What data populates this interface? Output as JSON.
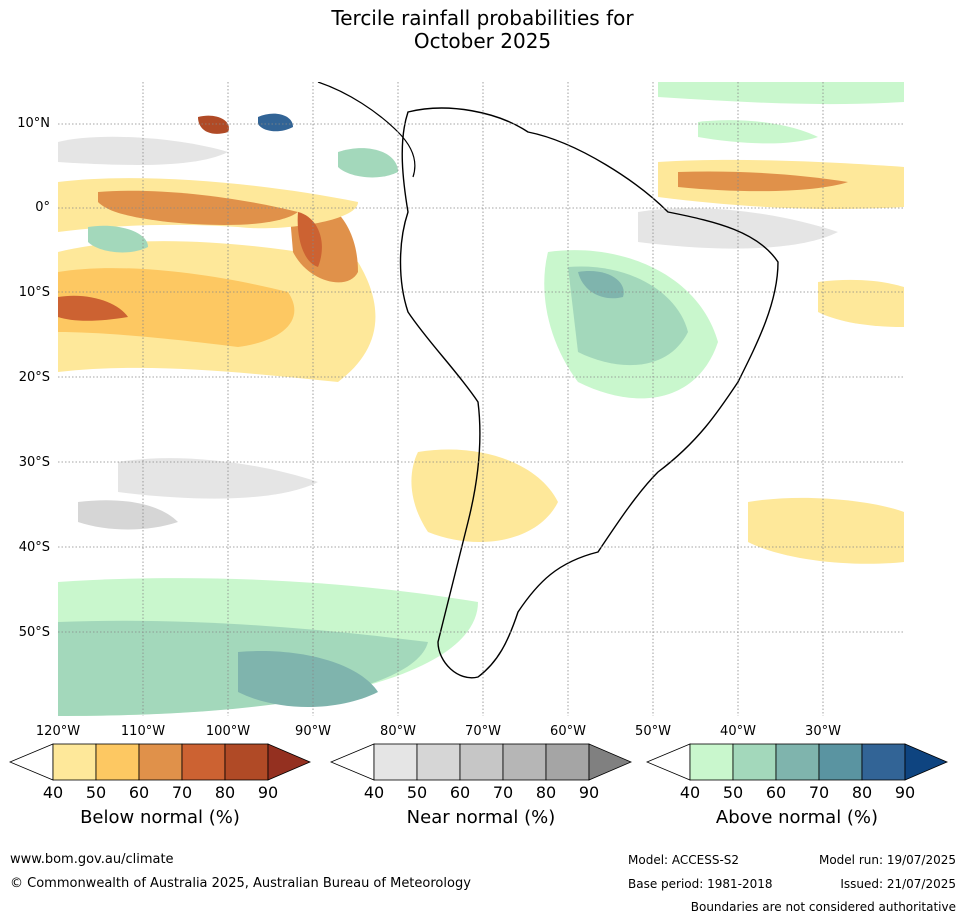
{
  "title": {
    "line1": "Tercile rainfall probabilities for",
    "line2": "October 2025"
  },
  "lat_labels": [
    "10°N",
    "0°",
    "10°S",
    "20°S",
    "30°S",
    "40°S",
    "50°S"
  ],
  "lon_labels": [
    "120°W",
    "110°W",
    "100°W",
    "90°W",
    "80°W",
    "70°W",
    "60°W",
    "50°W",
    "40°W",
    "30°W"
  ],
  "colorbars": [
    {
      "label": "Below normal (%)",
      "ticks": [
        "40",
        "50",
        "60",
        "70",
        "80",
        "90"
      ],
      "colors": [
        "#ffffff",
        "#fee89a",
        "#fdc862",
        "#e0914a",
        "#cc6232",
        "#b04a26",
        "#943020"
      ]
    },
    {
      "label": "Near normal (%)",
      "ticks": [
        "40",
        "50",
        "60",
        "70",
        "80",
        "90"
      ],
      "colors": [
        "#ffffff",
        "#e5e5e5",
        "#d6d6d6",
        "#c6c6c6",
        "#b6b6b6",
        "#a5a5a5",
        "#808080"
      ]
    },
    {
      "label": "Above normal (%)",
      "ticks": [
        "40",
        "50",
        "60",
        "70",
        "80",
        "90"
      ],
      "colors": [
        "#ffffff",
        "#c9f7cd",
        "#a3d8bb",
        "#7fb4ad",
        "#5a94a1",
        "#326496",
        "#0e4480"
      ]
    }
  ],
  "footer": {
    "url": "www.bom.gov.au/climate",
    "copyright": "© Commonwealth of Australia 2025, Australian Bureau of Meteorology",
    "model": "Model: ACCESS-S2",
    "base_period": "Base period: 1981-2018",
    "model_run": "Model run: 19/07/2025",
    "issued": "Issued: 21/07/2025",
    "disclaimer": "Boundaries are not considered authoritative"
  }
}
